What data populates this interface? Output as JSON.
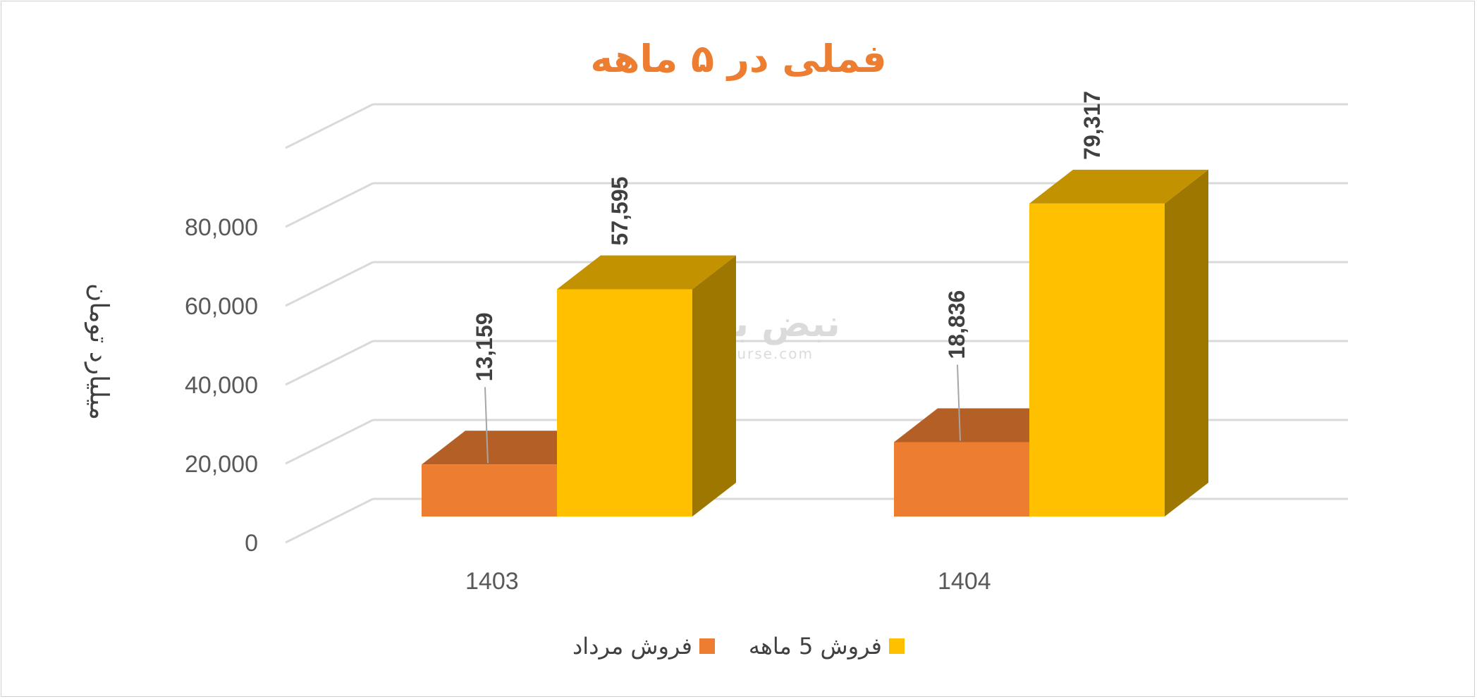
{
  "chart_data": {
    "type": "bar",
    "title": "فملی در ۵ ماهه",
    "ylabel": "میلیارد تومان",
    "xlabel": "",
    "categories": [
      "1403",
      "1404"
    ],
    "ylim": [
      0,
      80000
    ],
    "yticks": [
      "0",
      "20,000",
      "40,000",
      "60,000",
      "80,000"
    ],
    "yticks_values": [
      0,
      20000,
      40000,
      60000,
      80000
    ],
    "grid": true,
    "legend_position": "bottom",
    "style": "3d-clustered-column",
    "series": [
      {
        "name": "فروش مرداد",
        "values": [
          13159,
          18836
        ],
        "labels": [
          "13,159",
          "18,836"
        ],
        "color": "#ED7D31"
      },
      {
        "name": "فروش 5  ماهه",
        "values": [
          57595,
          79317
        ],
        "labels": [
          "57,595",
          "79,317"
        ],
        "color": "#FFC000"
      }
    ]
  },
  "watermark": {
    "text": "نبض بورس",
    "url": "nabzebourse.com"
  }
}
